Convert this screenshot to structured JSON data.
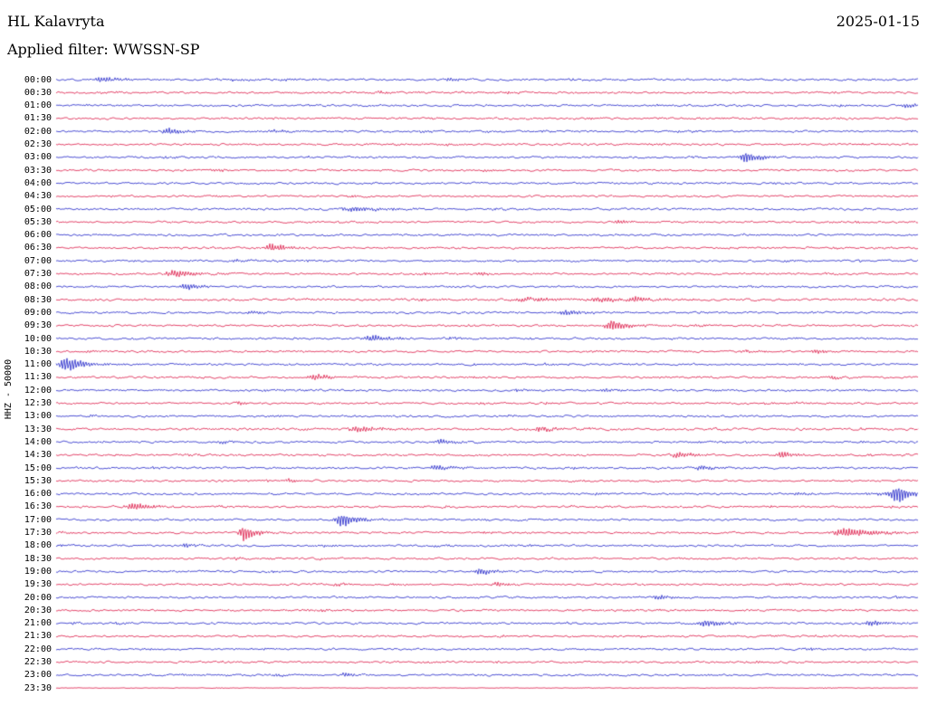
{
  "header": {
    "station": "HL Kalavryta",
    "date": "2025-01-15",
    "filter_label": "Applied filter: WWSSN-SP"
  },
  "left_axis": {
    "label": "HHZ - 50000"
  },
  "chart_data": {
    "type": "line",
    "subtype": "seismogram-helicorder",
    "title": "HL Kalavryta",
    "date": "2025-01-15",
    "filter": "WWSSN-SP",
    "channel": "HHZ",
    "amplitude_scale": 50000,
    "minutes_per_row": 30,
    "x_range_minutes": [
      0,
      30
    ],
    "grid": false,
    "legend": "none",
    "colors": {
      "blue": "#1e22c8",
      "red": "#dc1745"
    },
    "rows": [
      {
        "t": "00:00",
        "c": "b",
        "e": [
          [
            0.053,
            4,
            9
          ],
          [
            0.205,
            2,
            5
          ],
          [
            0.455,
            2.5,
            6
          ],
          [
            0.6,
            1.8,
            5
          ]
        ]
      },
      {
        "t": "00:30",
        "c": "r",
        "e": [
          [
            0.375,
            2.2,
            6
          ],
          [
            0.525,
            1.5,
            5
          ]
        ]
      },
      {
        "t": "01:00",
        "c": "b",
        "e": [
          [
            0.988,
            3.5,
            6
          ]
        ]
      },
      {
        "t": "01:30",
        "c": "r",
        "e": []
      },
      {
        "t": "02:00",
        "c": "b",
        "e": [
          [
            0.132,
            3.5,
            9
          ],
          [
            0.252,
            2,
            6
          ]
        ]
      },
      {
        "t": "02:30",
        "c": "r",
        "e": []
      },
      {
        "t": "03:00",
        "c": "b",
        "e": [
          [
            0.8,
            7.5,
            7
          ]
        ]
      },
      {
        "t": "03:30",
        "c": "r",
        "e": []
      },
      {
        "t": "04:00",
        "c": "b",
        "e": []
      },
      {
        "t": "04:30",
        "c": "r",
        "e": [
          [
            0.34,
            1.5,
            6
          ]
        ]
      },
      {
        "t": "05:00",
        "c": "b",
        "n": 1.15,
        "e": [
          [
            0.345,
            2.8,
            18
          ],
          [
            0.395,
            2.2,
            12
          ]
        ]
      },
      {
        "t": "05:30",
        "c": "r",
        "e": [
          [
            0.655,
            2,
            10
          ]
        ]
      },
      {
        "t": "06:00",
        "c": "b",
        "e": []
      },
      {
        "t": "06:30",
        "c": "r",
        "e": [
          [
            0.25,
            5,
            9
          ]
        ]
      },
      {
        "t": "07:00",
        "c": "b",
        "e": [
          [
            0.21,
            2,
            7
          ]
        ]
      },
      {
        "t": "07:30",
        "c": "r",
        "e": [
          [
            0.138,
            4.5,
            12
          ],
          [
            0.493,
            2.5,
            6
          ]
        ]
      },
      {
        "t": "08:00",
        "c": "b",
        "e": [
          [
            0.152,
            4,
            9
          ]
        ]
      },
      {
        "t": "08:30",
        "c": "r",
        "n": 1.2,
        "e": [
          [
            0.545,
            3,
            16
          ],
          [
            0.632,
            3,
            14
          ],
          [
            0.672,
            2.5,
            9
          ]
        ]
      },
      {
        "t": "09:00",
        "c": "b",
        "e": [
          [
            0.228,
            2.5,
            8
          ],
          [
            0.592,
            3.5,
            8
          ]
        ]
      },
      {
        "t": "09:30",
        "c": "r",
        "e": [
          [
            0.645,
            6.5,
            8
          ]
        ]
      },
      {
        "t": "10:00",
        "c": "b",
        "e": [
          [
            0.368,
            4,
            11
          ],
          [
            0.458,
            2,
            7
          ]
        ]
      },
      {
        "t": "10:30",
        "c": "r",
        "e": [
          [
            0.8,
            1.8,
            6
          ],
          [
            0.883,
            3,
            6
          ]
        ]
      },
      {
        "t": "11:00",
        "c": "b",
        "e": [
          [
            0.012,
            9,
            9
          ]
        ]
      },
      {
        "t": "11:30",
        "c": "r",
        "e": [
          [
            0.302,
            3.5,
            11
          ],
          [
            0.9,
            2.5,
            6
          ]
        ]
      },
      {
        "t": "12:00",
        "c": "b",
        "e": [
          [
            0.535,
            1.8,
            6
          ],
          [
            0.638,
            1.8,
            6
          ]
        ]
      },
      {
        "t": "12:30",
        "c": "r",
        "e": [
          [
            0.212,
            2.2,
            5
          ]
        ]
      },
      {
        "t": "13:00",
        "c": "b",
        "e": []
      },
      {
        "t": "13:30",
        "c": "r",
        "n": 1.15,
        "e": [
          [
            0.35,
            3.5,
            13
          ],
          [
            0.562,
            3,
            13
          ],
          [
            0.612,
            2,
            7
          ]
        ]
      },
      {
        "t": "14:00",
        "c": "b",
        "e": [
          [
            0.19,
            2,
            6
          ],
          [
            0.447,
            3.5,
            8
          ]
        ]
      },
      {
        "t": "14:30",
        "c": "r",
        "e": [
          [
            0.722,
            3.5,
            10
          ],
          [
            0.843,
            4,
            6
          ]
        ]
      },
      {
        "t": "15:00",
        "c": "b",
        "e": [
          [
            0.442,
            3.5,
            10
          ],
          [
            0.748,
            3,
            9
          ]
        ]
      },
      {
        "t": "15:30",
        "c": "r",
        "e": [
          [
            0.27,
            2,
            6
          ],
          [
            0.6,
            1.8,
            5
          ]
        ]
      },
      {
        "t": "16:00",
        "c": "b",
        "e": [
          [
            0.628,
            2,
            6
          ],
          [
            0.862,
            2,
            6
          ],
          [
            0.975,
            11,
            7
          ]
        ]
      },
      {
        "t": "16:30",
        "c": "r",
        "e": [
          [
            0.09,
            4.5,
            10
          ]
        ]
      },
      {
        "t": "17:00",
        "c": "b",
        "e": [
          [
            0.332,
            9,
            8
          ]
        ]
      },
      {
        "t": "17:30",
        "c": "r",
        "e": [
          [
            0.218,
            10,
            6
          ],
          [
            0.917,
            6,
            16
          ]
        ]
      },
      {
        "t": "18:00",
        "c": "b",
        "e": [
          [
            0.15,
            2.5,
            8
          ],
          [
            0.44,
            1.8,
            5
          ]
        ]
      },
      {
        "t": "18:30",
        "c": "r",
        "e": [
          [
            0.21,
            1.5,
            5
          ]
        ]
      },
      {
        "t": "19:00",
        "c": "b",
        "e": [
          [
            0.492,
            4,
            8
          ]
        ]
      },
      {
        "t": "19:30",
        "c": "r",
        "e": [
          [
            0.512,
            2.5,
            6
          ]
        ]
      },
      {
        "t": "20:00",
        "c": "b",
        "e": [
          [
            0.7,
            3,
            8
          ]
        ]
      },
      {
        "t": "20:30",
        "c": "r",
        "e": []
      },
      {
        "t": "21:00",
        "c": "b",
        "e": [
          [
            0.754,
            4.5,
            10
          ],
          [
            0.945,
            3.5,
            9
          ]
        ]
      },
      {
        "t": "21:30",
        "c": "r",
        "e": []
      },
      {
        "t": "22:00",
        "c": "b",
        "e": [
          [
            0.872,
            2,
            6
          ]
        ]
      },
      {
        "t": "22:30",
        "c": "r",
        "e": []
      },
      {
        "t": "23:00",
        "c": "b",
        "e": [
          [
            0.255,
            1.8,
            6
          ],
          [
            0.335,
            2,
            6
          ]
        ]
      },
      {
        "t": "23:30",
        "c": "r",
        "n": 0.3,
        "e": []
      }
    ]
  }
}
